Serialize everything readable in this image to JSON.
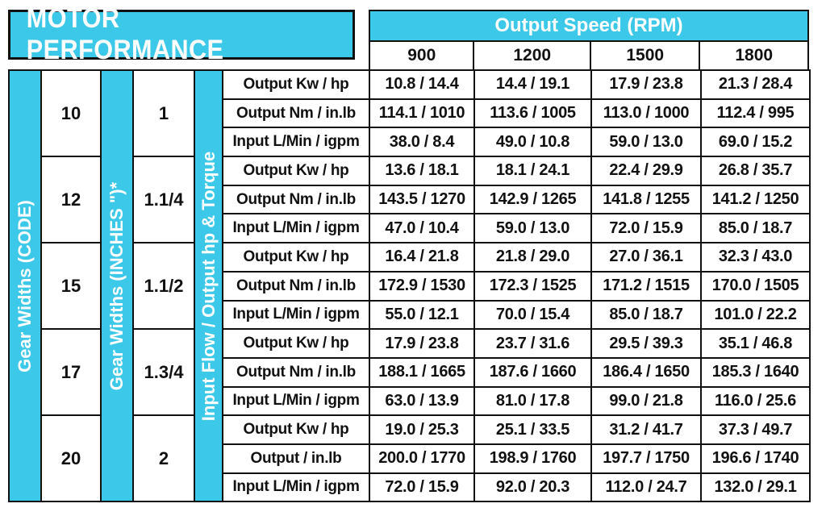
{
  "title": "MOTOR PERFORMANCE",
  "speed_header": "Output Speed (RPM)",
  "rpm_headers": [
    "900",
    "1200",
    "1500",
    "1800"
  ],
  "side_labels": {
    "gear_code": "Gear Widths (CODE)",
    "gear_inches": "Gear Widths (INCHES \")*",
    "flow_torque": "Input Flow / Output hp & Torque"
  },
  "groups": [
    {
      "code": "10",
      "inches": "1",
      "rows": [
        {
          "label": "Output Kw / hp",
          "values": [
            "10.8 / 14.4",
            "14.4 / 19.1",
            "17.9 / 23.8",
            "21.3 / 28.4"
          ]
        },
        {
          "label": "Output Nm / in.lb",
          "values": [
            "114.1 / 1010",
            "113.6 / 1005",
            "113.0 / 1000",
            "112.4 / 995"
          ]
        },
        {
          "label": "Input L/Min / igpm",
          "values": [
            "38.0 / 8.4",
            "49.0 / 10.8",
            "59.0 / 13.0",
            "69.0 / 15.2"
          ]
        }
      ]
    },
    {
      "code": "12",
      "inches": "1.1/4",
      "rows": [
        {
          "label": "Output Kw / hp",
          "values": [
            "13.6 / 18.1",
            "18.1 / 24.1",
            "22.4 / 29.9",
            "26.8 / 35.7"
          ]
        },
        {
          "label": "Output Nm / in.lb",
          "values": [
            "143.5 / 1270",
            "142.9 / 1265",
            "141.8 / 1255",
            "141.2 / 1250"
          ]
        },
        {
          "label": "Input L/Min / igpm",
          "values": [
            "47.0 / 10.4",
            "59.0 / 13.0",
            "72.0 / 15.9",
            "85.0 / 18.7"
          ]
        }
      ]
    },
    {
      "code": "15",
      "inches": "1.1/2",
      "rows": [
        {
          "label": "Output Kw / hp",
          "values": [
            "16.4 / 21.8",
            "21.8 / 29.0",
            "27.0 / 36.1",
            "32.3 / 43.0"
          ]
        },
        {
          "label": "Output Nm / in.lb",
          "values": [
            "172.9 / 1530",
            "172.3 / 1525",
            "171.2 / 1515",
            "170.0 / 1505"
          ]
        },
        {
          "label": "Input L/Min / igpm",
          "values": [
            "55.0 / 12.1",
            "70.0 / 15.4",
            "85.0 / 18.7",
            "101.0 / 22.2"
          ]
        }
      ]
    },
    {
      "code": "17",
      "inches": "1.3/4",
      "rows": [
        {
          "label": "Output Kw / hp",
          "values": [
            "17.9 / 23.8",
            "23.7 / 31.6",
            "29.5 / 39.3",
            "35.1 / 46.8"
          ]
        },
        {
          "label": "Output Nm / in.lb",
          "values": [
            "188.1 / 1665",
            "187.6 / 1660",
            "186.4 / 1650",
            "185.3 / 1640"
          ]
        },
        {
          "label": "Input L/Min / igpm",
          "values": [
            "63.0 / 13.9",
            "81.0 / 17.8",
            "99.0 / 21.8",
            "116.0 / 25.6"
          ]
        }
      ]
    },
    {
      "code": "20",
      "inches": "2",
      "rows": [
        {
          "label": "Output Kw / hp",
          "values": [
            "19.0 / 25.3",
            "25.1 / 33.5",
            "31.2 / 41.7",
            "37.3 / 49.7"
          ]
        },
        {
          "label": "Output / in.lb",
          "values": [
            "200.0 / 1770",
            "198.9 / 1760",
            "197.7 / 1750",
            "196.6 / 1740"
          ]
        },
        {
          "label": "Input L/Min / igpm",
          "values": [
            "72.0 / 15.9",
            "92.0 / 20.3",
            "112.0 / 24.7",
            "132.0 / 29.1"
          ]
        }
      ]
    }
  ],
  "colors": {
    "accent": "#3cc8e8",
    "border": "#111111"
  }
}
